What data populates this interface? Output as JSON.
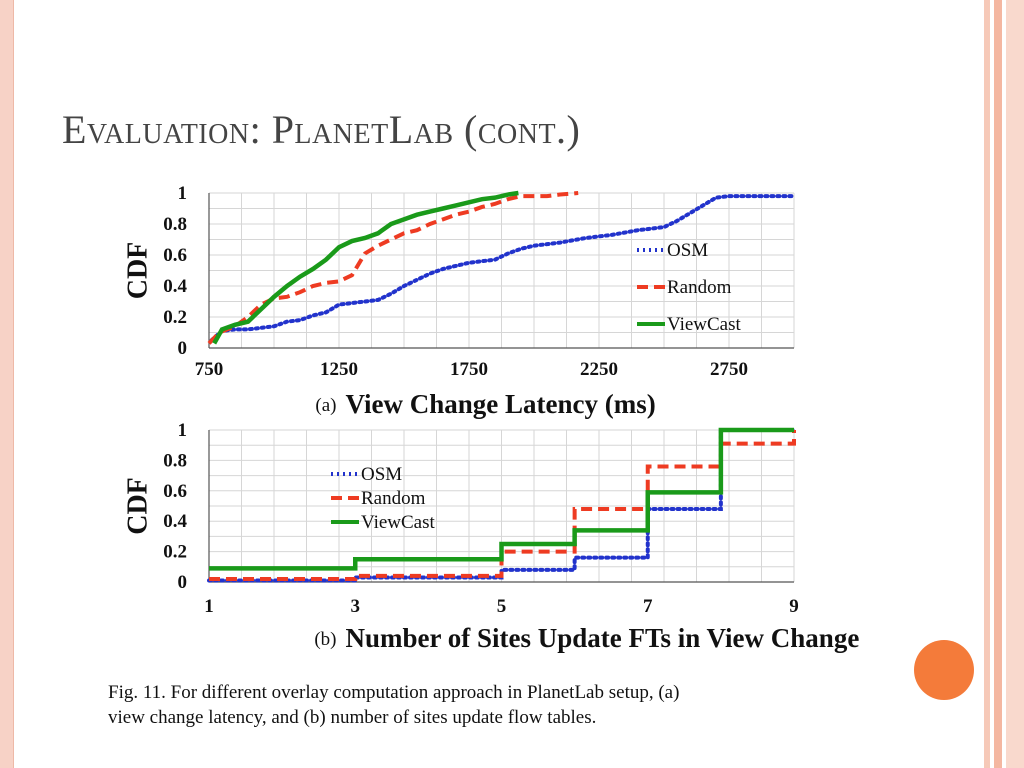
{
  "slide": {
    "title": "Evaluation: PlanetLab (cont.)",
    "caption_line1": "Fig. 11.   For different overlay computation approach in PlanetLab setup, (a)",
    "caption_line2": "view change latency, and (b) number of sites update flow tables.",
    "accent_color": "#f47b3a",
    "frame_color": "#f7d2c6"
  },
  "chart_data": [
    {
      "type": "line",
      "panel_label": "(a)",
      "xlabel": "View Change Latency (ms)",
      "ylabel": "CDF",
      "xlim": [
        750,
        3000
      ],
      "ylim": [
        0,
        1
      ],
      "xticks": [
        750,
        1250,
        1750,
        2250,
        2750
      ],
      "yticks": [
        0,
        0.2,
        0.4,
        0.6,
        0.8,
        1
      ],
      "grid": true,
      "legend_position": "right",
      "series": [
        {
          "name": "OSM",
          "color": "#2233cc",
          "style": "dotted",
          "x": [
            760,
            800,
            850,
            900,
            950,
            1000,
            1050,
            1100,
            1150,
            1200,
            1250,
            1300,
            1350,
            1400,
            1450,
            1500,
            1550,
            1600,
            1650,
            1700,
            1750,
            1800,
            1850,
            1900,
            1950,
            2000,
            2050,
            2100,
            2200,
            2300,
            2400,
            2500,
            2550,
            2600,
            2650,
            2700,
            2750,
            2800,
            2900,
            3000
          ],
          "y": [
            0.05,
            0.11,
            0.12,
            0.12,
            0.13,
            0.14,
            0.17,
            0.18,
            0.21,
            0.23,
            0.28,
            0.29,
            0.3,
            0.31,
            0.35,
            0.4,
            0.44,
            0.48,
            0.51,
            0.53,
            0.55,
            0.56,
            0.57,
            0.61,
            0.64,
            0.66,
            0.67,
            0.68,
            0.71,
            0.73,
            0.76,
            0.78,
            0.82,
            0.87,
            0.92,
            0.97,
            0.98,
            0.98,
            0.98,
            0.98
          ]
        },
        {
          "name": "Random",
          "color": "#ee3b22",
          "style": "dashed",
          "x": [
            750,
            790,
            850,
            900,
            950,
            1000,
            1050,
            1100,
            1150,
            1200,
            1250,
            1300,
            1350,
            1400,
            1450,
            1500,
            1550,
            1600,
            1650,
            1700,
            1750,
            1800,
            1850,
            1900,
            1950,
            2000,
            2050,
            2100,
            2170
          ],
          "y": [
            0.03,
            0.1,
            0.14,
            0.2,
            0.28,
            0.32,
            0.33,
            0.36,
            0.4,
            0.42,
            0.43,
            0.47,
            0.61,
            0.66,
            0.7,
            0.74,
            0.76,
            0.8,
            0.83,
            0.86,
            0.88,
            0.91,
            0.93,
            0.96,
            0.98,
            0.98,
            0.98,
            0.99,
            1.0
          ]
        },
        {
          "name": "ViewCast",
          "color": "#1a9a1a",
          "style": "solid",
          "x": [
            770,
            800,
            850,
            900,
            950,
            1000,
            1050,
            1100,
            1150,
            1200,
            1250,
            1300,
            1350,
            1400,
            1450,
            1500,
            1550,
            1600,
            1650,
            1700,
            1750,
            1800,
            1850,
            1900,
            1940
          ],
          "y": [
            0.03,
            0.12,
            0.15,
            0.17,
            0.25,
            0.33,
            0.4,
            0.46,
            0.51,
            0.57,
            0.65,
            0.69,
            0.71,
            0.74,
            0.8,
            0.83,
            0.86,
            0.88,
            0.9,
            0.92,
            0.94,
            0.96,
            0.97,
            0.99,
            1.0
          ]
        }
      ]
    },
    {
      "type": "line",
      "panel_label": "(b)",
      "xlabel": "Number of Sites Update FTs in View Change",
      "ylabel": "CDF",
      "xlim": [
        1,
        9
      ],
      "ylim": [
        0,
        1
      ],
      "xticks": [
        1,
        3,
        5,
        7,
        9
      ],
      "yticks": [
        0,
        0.2,
        0.4,
        0.6,
        0.8,
        1
      ],
      "grid": true,
      "legend_position": "top-left",
      "series": [
        {
          "name": "OSM",
          "color": "#2233cc",
          "style": "dotted",
          "x": [
            1,
            3,
            5,
            6,
            7,
            8,
            9
          ],
          "y": [
            0.01,
            0.03,
            0.08,
            0.16,
            0.48,
            1.0,
            1.0
          ]
        },
        {
          "name": "Random",
          "color": "#ee3b22",
          "style": "dashed",
          "x": [
            1,
            3,
            5,
            6,
            7,
            8,
            9
          ],
          "y": [
            0.02,
            0.04,
            0.2,
            0.48,
            0.76,
            0.91,
            1.0
          ]
        },
        {
          "name": "ViewCast",
          "color": "#1a9a1a",
          "style": "solid",
          "x": [
            1,
            3,
            5,
            6,
            7,
            8,
            9
          ],
          "y": [
            0.09,
            0.15,
            0.25,
            0.34,
            0.59,
            1.0,
            1.0
          ]
        }
      ]
    }
  ]
}
